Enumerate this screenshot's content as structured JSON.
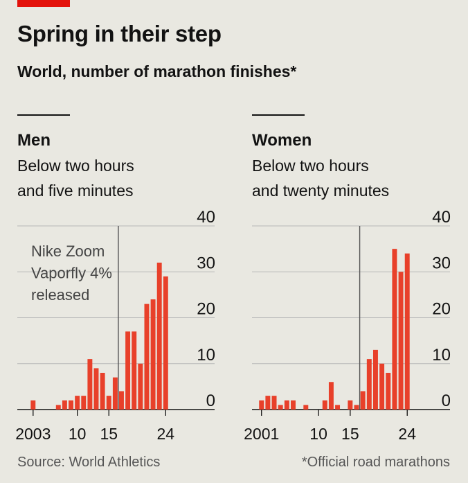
{
  "header": {
    "title": "Spring in their step",
    "subtitle": "World, number of marathon finishes*"
  },
  "footer": {
    "source": "Source: World Athletics",
    "footnote": "*Official road marathons"
  },
  "colors": {
    "bar": "#e8402a",
    "grid": "#b7b7b7",
    "text": "#121212",
    "accent": "#e3120b"
  },
  "chart_data": [
    {
      "type": "bar",
      "title": "Men",
      "subtitle_lines": [
        "Below two hours",
        "and five minutes"
      ],
      "x_range": [
        2001,
        2024
      ],
      "x_ticks": [
        2003,
        2010,
        2015,
        2024
      ],
      "x_tick_labels": [
        "2003",
        "10",
        "15",
        "24"
      ],
      "y_ticks": [
        0,
        10,
        20,
        30,
        40
      ],
      "ylim": [
        0,
        40
      ],
      "annotation": {
        "x": 2016.5,
        "lines": [
          "Nike Zoom",
          "Vaporfly 4%",
          "released"
        ]
      },
      "points": [
        {
          "x": 2003,
          "y": 2
        },
        {
          "x": 2004,
          "y": 0
        },
        {
          "x": 2005,
          "y": 0
        },
        {
          "x": 2006,
          "y": 0
        },
        {
          "x": 2007,
          "y": 1
        },
        {
          "x": 2008,
          "y": 2
        },
        {
          "x": 2009,
          "y": 2
        },
        {
          "x": 2010,
          "y": 3
        },
        {
          "x": 2011,
          "y": 3
        },
        {
          "x": 2012,
          "y": 11
        },
        {
          "x": 2013,
          "y": 9
        },
        {
          "x": 2014,
          "y": 8
        },
        {
          "x": 2015,
          "y": 3
        },
        {
          "x": 2016,
          "y": 7
        },
        {
          "x": 2017,
          "y": 4
        },
        {
          "x": 2018,
          "y": 17
        },
        {
          "x": 2019,
          "y": 17
        },
        {
          "x": 2020,
          "y": 10
        },
        {
          "x": 2021,
          "y": 23
        },
        {
          "x": 2022,
          "y": 24
        },
        {
          "x": 2023,
          "y": 32
        },
        {
          "x": 2024,
          "y": 29
        }
      ]
    },
    {
      "type": "bar",
      "title": "Women",
      "subtitle_lines": [
        "Below two hours",
        "and twenty minutes"
      ],
      "x_range": [
        2000,
        2024
      ],
      "x_ticks": [
        2001,
        2010,
        2015,
        2024
      ],
      "x_tick_labels": [
        "2001",
        "10",
        "15",
        "24"
      ],
      "y_ticks": [
        0,
        10,
        20,
        30,
        40
      ],
      "ylim": [
        0,
        40
      ],
      "annotation": {
        "x": 2016.5,
        "lines": []
      },
      "points": [
        {
          "x": 2001,
          "y": 2
        },
        {
          "x": 2002,
          "y": 3
        },
        {
          "x": 2003,
          "y": 3
        },
        {
          "x": 2004,
          "y": 1
        },
        {
          "x": 2005,
          "y": 2
        },
        {
          "x": 2006,
          "y": 2
        },
        {
          "x": 2007,
          "y": 0
        },
        {
          "x": 2008,
          "y": 1
        },
        {
          "x": 2009,
          "y": 0
        },
        {
          "x": 2010,
          "y": 0
        },
        {
          "x": 2011,
          "y": 2
        },
        {
          "x": 2012,
          "y": 6
        },
        {
          "x": 2013,
          "y": 1
        },
        {
          "x": 2014,
          "y": 0
        },
        {
          "x": 2015,
          "y": 2
        },
        {
          "x": 2016,
          "y": 1
        },
        {
          "x": 2017,
          "y": 4
        },
        {
          "x": 2018,
          "y": 11
        },
        {
          "x": 2019,
          "y": 13
        },
        {
          "x": 2020,
          "y": 10
        },
        {
          "x": 2021,
          "y": 8
        },
        {
          "x": 2022,
          "y": 35
        },
        {
          "x": 2023,
          "y": 30
        },
        {
          "x": 2024,
          "y": 34
        }
      ]
    }
  ]
}
